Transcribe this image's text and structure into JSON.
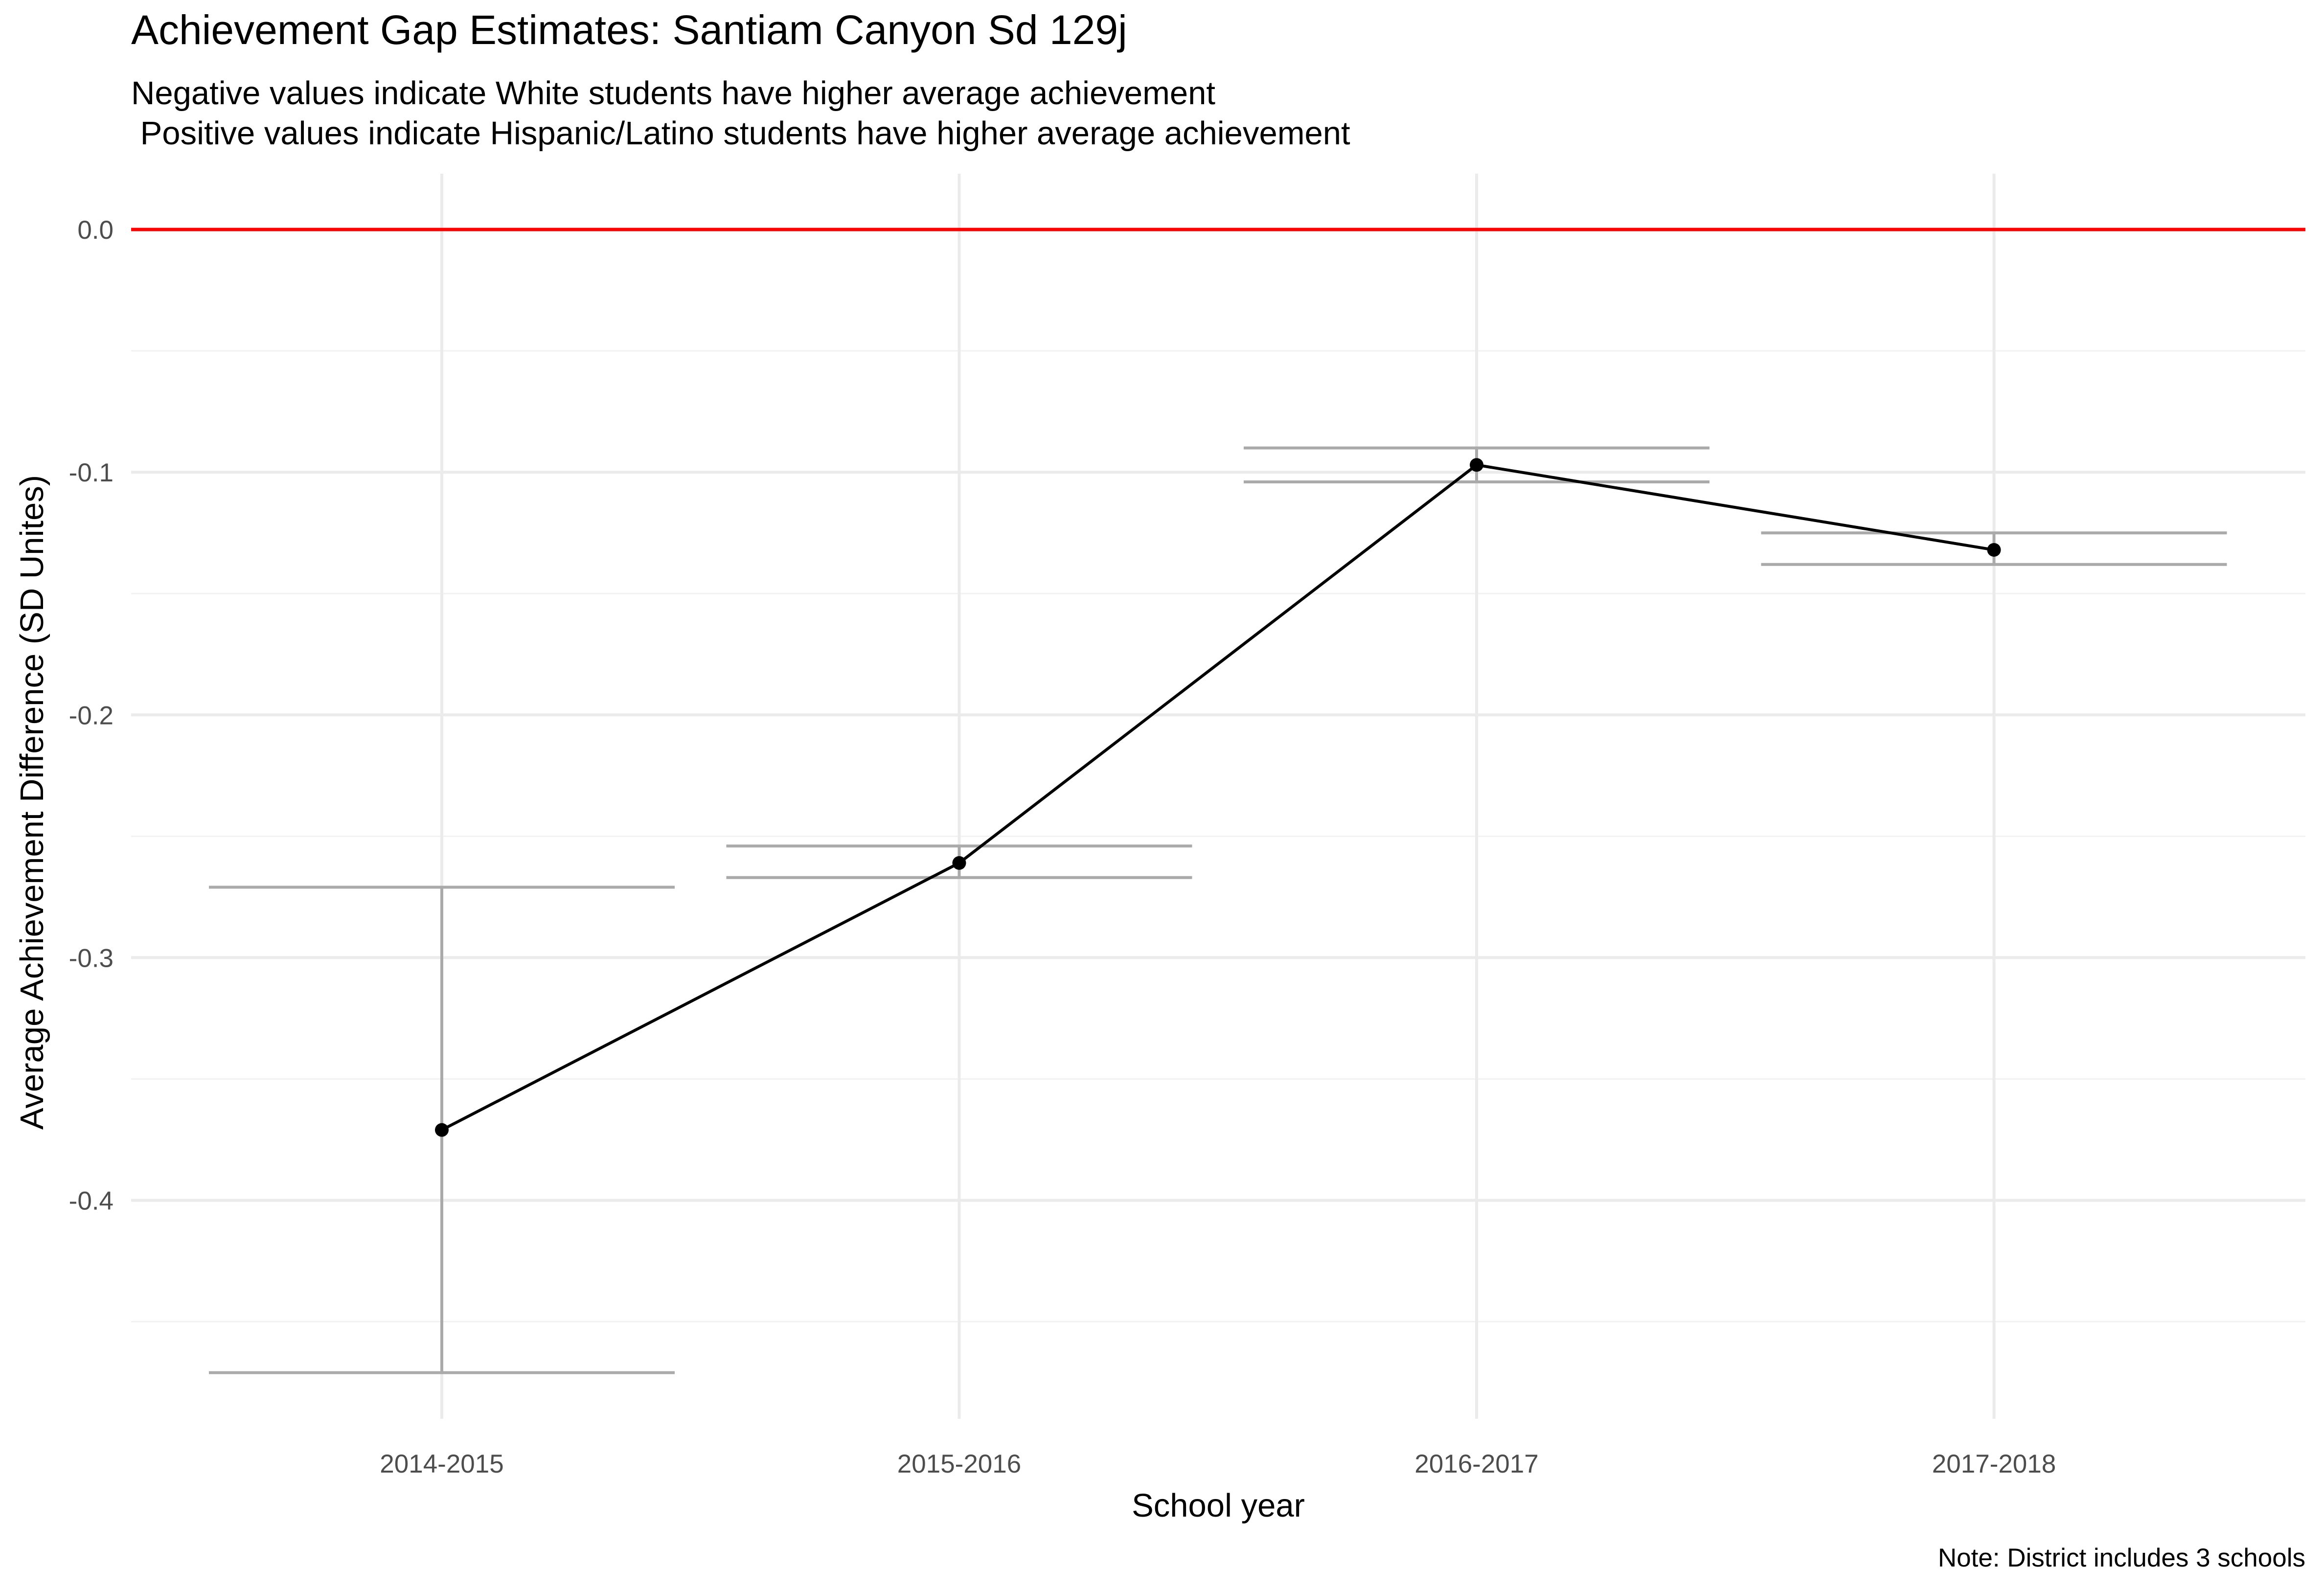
{
  "chart_data": {
    "type": "line",
    "title": "Achievement Gap Estimates: Santiam Canyon Sd 129j",
    "subtitle_lines": [
      "Negative values indicate White students have higher average achievement",
      " Positive values indicate Hispanic/Latino students have higher average achievement"
    ],
    "xlabel": "School year",
    "ylabel": "Average Achievement Difference (SD Unites)",
    "caption": "Note: District includes 3 schools",
    "categories": [
      "2014-2015",
      "2015-2016",
      "2016-2017",
      "2017-2018"
    ],
    "series": [
      {
        "values": [
          -0.371,
          -0.261,
          -0.097,
          -0.132
        ],
        "lower": [
          -0.471,
          -0.267,
          -0.104,
          -0.138
        ],
        "upper": [
          -0.271,
          -0.254,
          -0.09,
          -0.125
        ]
      }
    ],
    "reference_line": {
      "y": 0.0,
      "color": "#ff0000"
    },
    "ylim": [
      -0.49,
      0.023
    ],
    "yticks": [
      0.0,
      -0.1,
      -0.2,
      -0.3,
      -0.4
    ],
    "ytick_labels": [
      "0.0",
      "-0.1",
      "-0.2",
      "-0.3",
      "-0.4"
    ],
    "grid": true,
    "colors": {
      "line": "#000000",
      "points": "#000000",
      "error_bars": "#aaaaaa",
      "grid_major": "#ebebeb",
      "grid_minor": "#f2f2f2"
    }
  }
}
